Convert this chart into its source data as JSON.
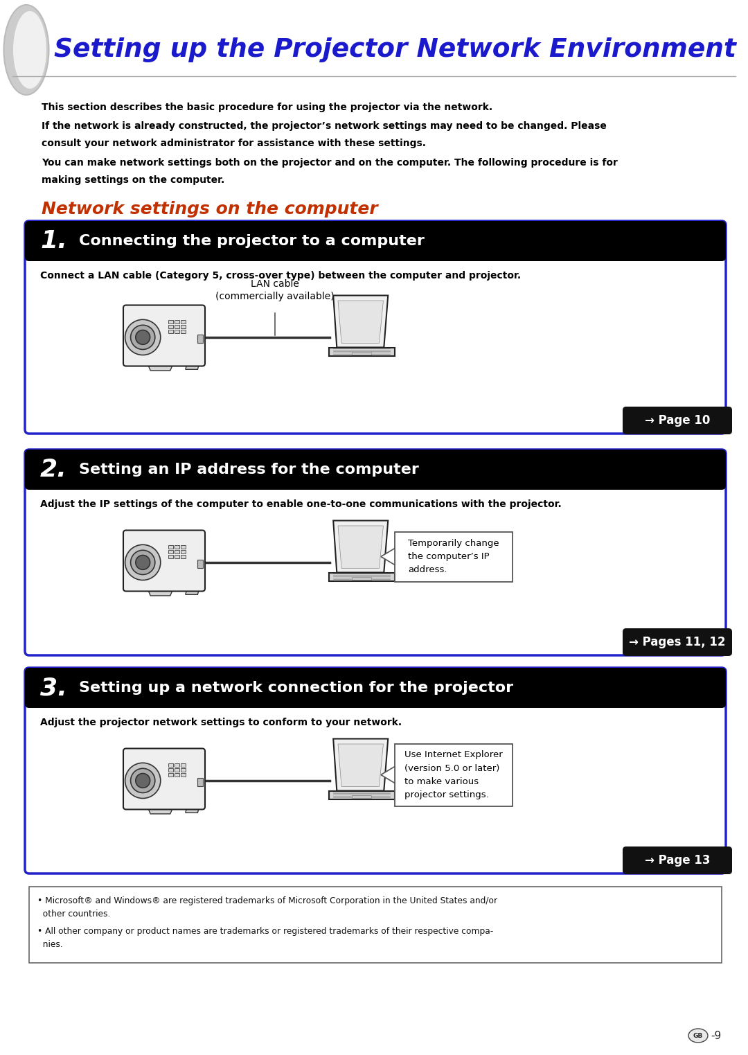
{
  "title": "Setting up the Projector Network Environment",
  "title_color": "#1a1acc",
  "bg_color": "#ffffff",
  "intro_line1": "This section describes the basic procedure for using the projector via the network.",
  "intro_line2a": "If the network is already constructed, the projector’s network settings may need to be changed. Please",
  "intro_line2b": "consult your network administrator for assistance with these settings.",
  "intro_line3a": "You can make network settings both on the projector and on the computer. The following procedure is for",
  "intro_line3b": "making settings on the computer.",
  "section_title": "Network settings on the computer",
  "section_title_color": "#c03000",
  "steps": [
    {
      "number": "1",
      "title": "Connecting the projector to a computer",
      "description": "Connect a LAN cable (Category 5, cross-over type) between the computer and projector.",
      "has_lan_callout": true,
      "lan_line1": "LAN cable",
      "lan_line2": "(commercially available)",
      "note_lines": [],
      "page_ref": "→ Page 10",
      "border_color": "#2222cc"
    },
    {
      "number": "2",
      "title": "Setting an IP address for the computer",
      "description": "Adjust the IP settings of the computer to enable one-to-one communications with the projector.",
      "has_lan_callout": false,
      "lan_line1": "",
      "lan_line2": "",
      "note_lines": [
        "Temporarily change",
        "the computer’s IP",
        "address."
      ],
      "page_ref": "→ Pages 11, 12",
      "border_color": "#2222cc"
    },
    {
      "number": "3",
      "title": "Setting up a network connection for the projector",
      "description": "Adjust the projector network settings to conform to your network.",
      "has_lan_callout": false,
      "lan_line1": "",
      "lan_line2": "",
      "note_lines": [
        "Use Internet Explorer",
        "(version 5.0 or later)",
        "to make various",
        "projector settings."
      ],
      "page_ref": "→ Page 13",
      "border_color": "#2222cc"
    }
  ],
  "footer_line1": "• Microsoft® and Windows® are registered trademarks of Microsoft Corporation in the United States and/or",
  "footer_line1b": "  other countries.",
  "footer_line2": "• All other company or product names are trademarks or registered trademarks of their respective compa-",
  "footer_line2b": "  nies.",
  "page_num": "GB–9"
}
